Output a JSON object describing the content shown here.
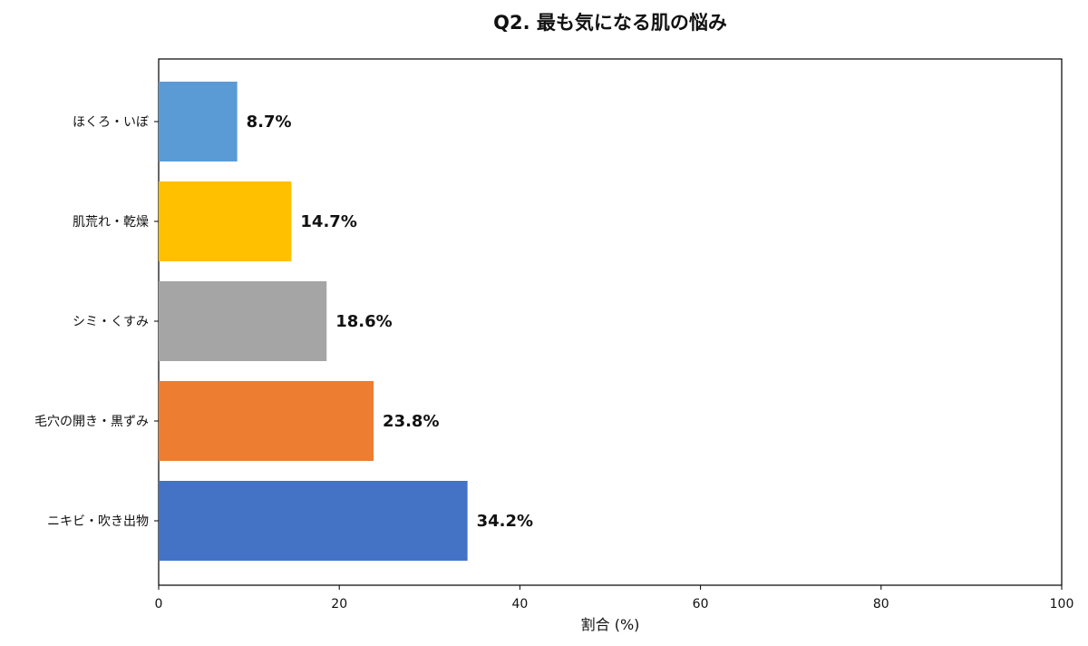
{
  "chart_data": {
    "type": "bar",
    "orientation": "horizontal",
    "title": "Q2. 最も気になる肌の悩み",
    "xlabel": "割合 (%)",
    "ylabel": "",
    "xlim": [
      0,
      100
    ],
    "xticks": [
      "0",
      "20",
      "40",
      "60",
      "80",
      "100"
    ],
    "grid": false,
    "categories": [
      "ほくろ・いぼ",
      "肌荒れ・乾燥",
      "シミ・くすみ",
      "毛穴の開き・黒ずみ",
      "ニキビ・吹き出物"
    ],
    "values": [
      8.7,
      14.7,
      18.6,
      23.8,
      34.2
    ],
    "data_labels": [
      "8.7%",
      "14.7%",
      "18.6%",
      "23.8%",
      "34.2%"
    ],
    "colors": [
      "#5b9bd5",
      "#ffc000",
      "#a5a5a5",
      "#ed7d31",
      "#4472c4"
    ]
  }
}
